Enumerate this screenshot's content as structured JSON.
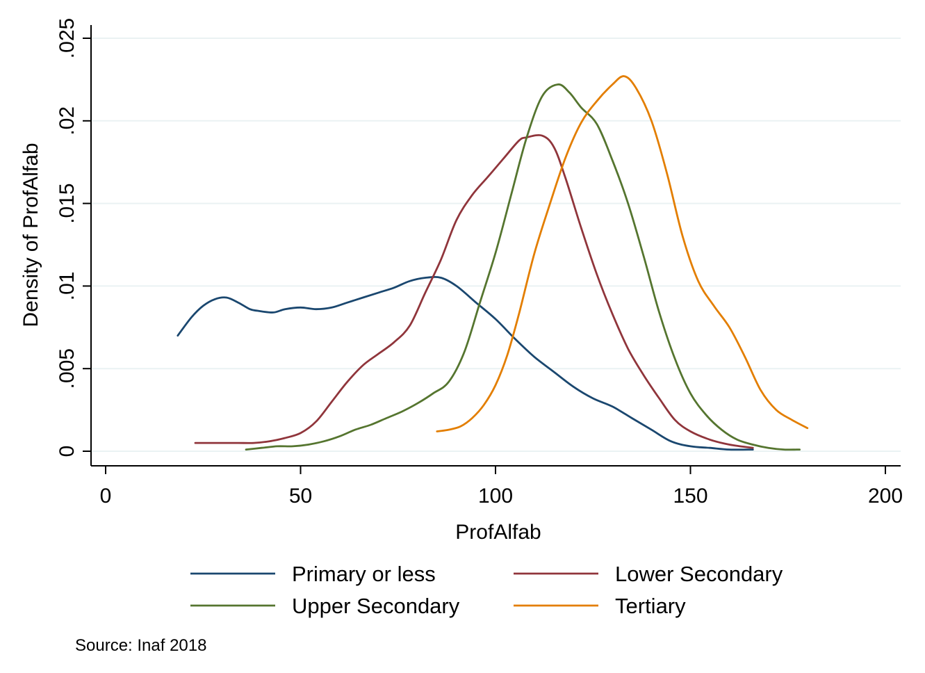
{
  "chart_data": {
    "type": "line",
    "title": "",
    "xlabel": "ProfAlfab",
    "ylabel": "Density of ProfAlfab",
    "xlim": [
      0,
      200
    ],
    "ylim": [
      0,
      0.025
    ],
    "x_ticks": [
      0,
      50,
      100,
      150,
      200
    ],
    "x_tick_labels": [
      "0",
      "50",
      "100",
      "150",
      "200"
    ],
    "y_ticks": [
      0,
      0.005,
      0.01,
      0.015,
      0.02,
      0.025
    ],
    "y_tick_labels": [
      "0",
      ".005",
      ".01",
      ".015",
      ".02",
      ".025"
    ],
    "grid": true,
    "legend_position": "bottom",
    "note": "Source: Inaf 2018",
    "series": [
      {
        "name": "Primary or less",
        "color": "#1a476f",
        "x": [
          18.5,
          22,
          25,
          28,
          31,
          34,
          37,
          39,
          43,
          46,
          50,
          54,
          58,
          62,
          66,
          70,
          74,
          78,
          82,
          86,
          90,
          95,
          100,
          105,
          110,
          115,
          120,
          125,
          130,
          135,
          140,
          145,
          150,
          155,
          160,
          166
        ],
        "y": [
          0.007,
          0.0081,
          0.0088,
          0.0092,
          0.0093,
          0.009,
          0.0086,
          0.0085,
          0.0084,
          0.0086,
          0.0087,
          0.0086,
          0.0087,
          0.009,
          0.0093,
          0.0096,
          0.0099,
          0.0103,
          0.0105,
          0.0105,
          0.01,
          0.009,
          0.008,
          0.0068,
          0.0057,
          0.0048,
          0.0039,
          0.0032,
          0.0027,
          0.002,
          0.0013,
          0.0006,
          0.0003,
          0.0002,
          0.0001,
          0.0001
        ]
      },
      {
        "name": "Lower Secondary",
        "color": "#90353b",
        "x": [
          23,
          27,
          30,
          34,
          38,
          42,
          46,
          50,
          54,
          58,
          62,
          66,
          70,
          74,
          78,
          82,
          86,
          90,
          94,
          98,
          102,
          106,
          108,
          112,
          115,
          118,
          122,
          126,
          130,
          134,
          138,
          142,
          146,
          150,
          155,
          160,
          166
        ],
        "y": [
          0.0005,
          0.0005,
          0.0005,
          0.0005,
          0.0005,
          0.0006,
          0.0008,
          0.0011,
          0.0018,
          0.003,
          0.0042,
          0.0052,
          0.0059,
          0.0066,
          0.0076,
          0.0096,
          0.0116,
          0.014,
          0.0155,
          0.0166,
          0.0177,
          0.0188,
          0.019,
          0.0191,
          0.0184,
          0.0165,
          0.0135,
          0.0107,
          0.0083,
          0.0062,
          0.0046,
          0.0032,
          0.0019,
          0.0012,
          0.0007,
          0.0004,
          0.0002
        ]
      },
      {
        "name": "Upper Secondary",
        "color": "#55752f",
        "x": [
          36,
          40,
          44,
          48,
          52,
          56,
          60,
          64,
          68,
          72,
          76,
          80,
          84,
          88,
          92,
          96,
          100,
          104,
          108,
          112,
          116,
          119,
          122,
          126,
          130,
          134,
          138,
          142,
          146,
          150,
          154,
          158,
          162,
          166,
          170,
          174,
          178
        ],
        "y": [
          0.0001,
          0.0002,
          0.0003,
          0.0003,
          0.0004,
          0.0006,
          0.0009,
          0.0013,
          0.0016,
          0.002,
          0.0024,
          0.0029,
          0.0035,
          0.0042,
          0.006,
          0.009,
          0.012,
          0.0155,
          0.019,
          0.0215,
          0.0222,
          0.0217,
          0.0208,
          0.0198,
          0.0176,
          0.015,
          0.0118,
          0.0084,
          0.0056,
          0.0035,
          0.0022,
          0.0013,
          0.0007,
          0.0004,
          0.0002,
          0.0001,
          0.0001
        ]
      },
      {
        "name": "Tertiary",
        "color": "#e37e00",
        "x": [
          85,
          88,
          91,
          94,
          97,
          100,
          103,
          106,
          110,
          114,
          118,
          122,
          126,
          130,
          133,
          136,
          140,
          144,
          148,
          152,
          156,
          160,
          164,
          168,
          172,
          176,
          180
        ],
        "y": [
          0.0012,
          0.0013,
          0.0015,
          0.002,
          0.0028,
          0.004,
          0.0058,
          0.0083,
          0.012,
          0.015,
          0.0178,
          0.0199,
          0.0212,
          0.0222,
          0.0227,
          0.022,
          0.02,
          0.0168,
          0.013,
          0.0103,
          0.0088,
          0.0075,
          0.0057,
          0.0037,
          0.0025,
          0.0019,
          0.0014
        ]
      }
    ]
  }
}
